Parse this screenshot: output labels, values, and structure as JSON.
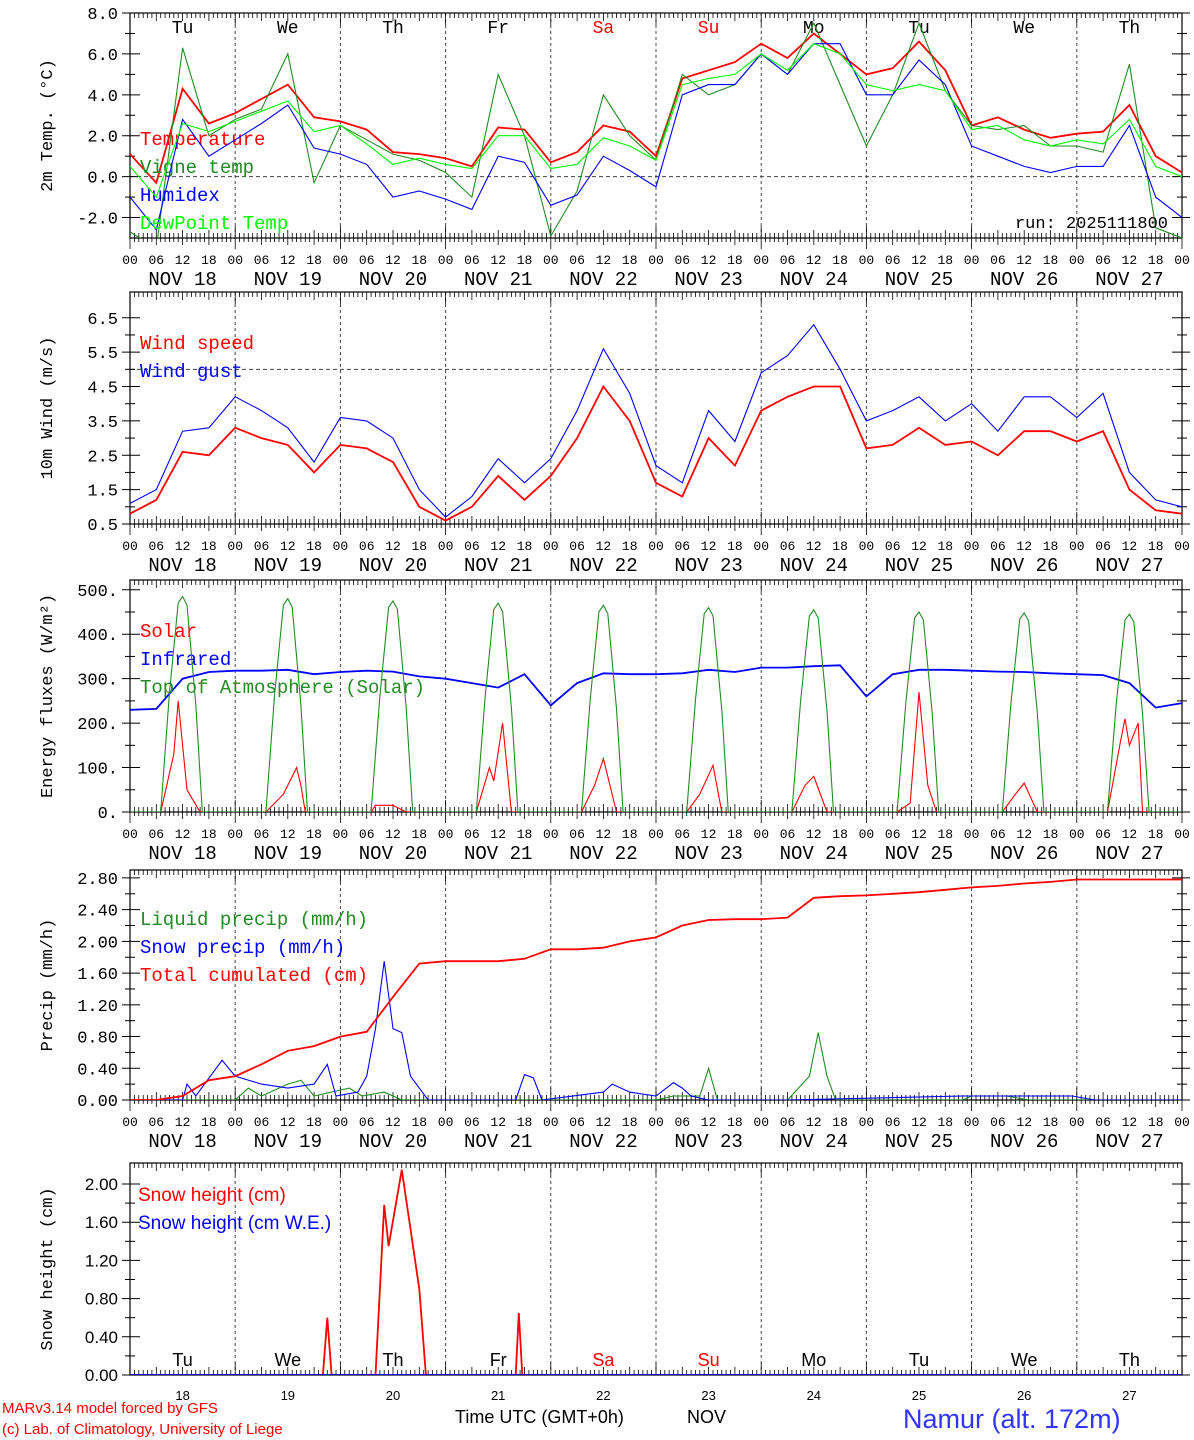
{
  "x_axis": {
    "start": "NOV 18 00 UTC",
    "hour_labels": [
      "00",
      "06",
      "12",
      "18"
    ],
    "date_labels": [
      "NOV 18",
      "NOV 19",
      "NOV 20",
      "NOV 21",
      "NOV 22",
      "NOV 23",
      "NOV 24",
      "NOV 25",
      "NOV 26",
      "NOV 27"
    ],
    "final_hour_label": "00",
    "day_names": [
      "Tu",
      "We",
      "Th",
      "Fr",
      "Sa",
      "Su",
      "Mo",
      "Tu",
      "We",
      "Th"
    ],
    "weekend_days": [
      "Sa",
      "Su"
    ],
    "day_numbers": [
      "18",
      "19",
      "20",
      "21",
      "22",
      "23",
      "24",
      "25",
      "26",
      "27"
    ],
    "time_label": "Time UTC (GMT+0h)",
    "month_label": "NOV"
  },
  "footer": {
    "model_line": "MARv3.14 model forced by GFS",
    "credit_line": "(c) Lab. of Climatology, University of Liege",
    "station": "Namur (alt. 172m)"
  },
  "colors": {
    "red": "#ff0000",
    "blue": "#0000ff",
    "dark_green": "#228b22",
    "light_green": "#00ff00",
    "weekend": "#ff0000",
    "station": "#3333ff"
  },
  "chart_data": [
    {
      "type": "line",
      "ylabel": "2m Temp. (°C)",
      "ylim": [
        -3,
        8
      ],
      "yticks": [
        "-2.0",
        "0.0",
        "2.0",
        "4.0",
        "6.0",
        "8.0"
      ],
      "ytick_values": [
        -2,
        0,
        2,
        4,
        6,
        8
      ],
      "ref_line": 0,
      "annotation": "run: 2025111800",
      "x_step_hours": 6,
      "series": [
        {
          "name": "Temperature",
          "color": "#ff0000",
          "values": [
            1.1,
            -0.3,
            4.3,
            2.6,
            3.1,
            3.8,
            4.5,
            2.9,
            2.7,
            2.3,
            1.2,
            1.1,
            0.9,
            0.5,
            2.4,
            2.3,
            0.7,
            1.2,
            2.5,
            2.2,
            1.0,
            4.8,
            5.2,
            5.6,
            6.5,
            5.8,
            7.0,
            6.0,
            5.0,
            5.3,
            6.6,
            5.2,
            2.5,
            2.9,
            2.3,
            1.9,
            2.1,
            2.2,
            3.5,
            1.0,
            0.2
          ]
        },
        {
          "name": "Vigne temp",
          "color": "#228b22",
          "values": [
            -2.7,
            -3.5,
            6.3,
            2.0,
            2.8,
            3.3,
            6.0,
            -0.3,
            2.5,
            1.8,
            1.1,
            0.8,
            0.2,
            -1.0,
            5.0,
            2.0,
            -2.9,
            -0.7,
            4.0,
            2.0,
            0.8,
            5.0,
            4.0,
            4.5,
            6.0,
            5.0,
            7.5,
            4.5,
            1.5,
            4.0,
            7.5,
            4.2,
            2.5,
            2.3,
            2.5,
            1.5,
            1.5,
            1.2,
            5.5,
            -2.5,
            -3.0
          ]
        },
        {
          "name": "Humidex",
          "color": "#0000ff",
          "values": [
            -1.0,
            -2.6,
            2.8,
            1.0,
            1.8,
            2.6,
            3.5,
            1.4,
            1.1,
            0.6,
            -1.0,
            -0.7,
            -1.1,
            -1.6,
            1.0,
            0.7,
            -1.4,
            -0.9,
            1.0,
            0.3,
            -0.5,
            4.0,
            4.5,
            4.5,
            6.0,
            5.0,
            6.5,
            6.5,
            4.0,
            4.0,
            5.7,
            4.5,
            1.5,
            1.0,
            0.5,
            0.2,
            0.5,
            0.5,
            2.5,
            -1.0,
            -2.0
          ]
        },
        {
          "name": "DewPoint Temp",
          "color": "#00ff00",
          "values": [
            0.5,
            -1.0,
            2.6,
            2.2,
            2.7,
            3.2,
            3.7,
            2.2,
            2.5,
            1.6,
            0.6,
            0.9,
            0.6,
            0.4,
            2.0,
            2.0,
            0.4,
            0.6,
            1.9,
            1.5,
            0.8,
            4.5,
            4.8,
            5.0,
            6.0,
            5.2,
            6.5,
            6.0,
            4.5,
            4.2,
            4.5,
            4.2,
            2.3,
            2.5,
            1.8,
            1.5,
            1.8,
            1.6,
            2.8,
            0.5,
            0.0
          ]
        }
      ]
    },
    {
      "type": "line",
      "ylabel": "10m Wind (m/s)",
      "ylim": [
        0.5,
        7.25
      ],
      "yticks": [
        "0.5",
        "1.5",
        "2.5",
        "3.5",
        "4.5",
        "5.5",
        "6.5"
      ],
      "ytick_values": [
        0.5,
        1.5,
        2.5,
        3.5,
        4.5,
        5.5,
        6.5
      ],
      "ref_line": 5.0,
      "x_step_hours": 6,
      "series": [
        {
          "name": "Wind speed",
          "color": "#ff0000",
          "values": [
            0.8,
            1.2,
            2.6,
            2.5,
            3.3,
            3.0,
            2.8,
            2.0,
            2.8,
            2.7,
            2.3,
            1.0,
            0.6,
            1.0,
            1.9,
            1.2,
            1.9,
            3.0,
            4.5,
            3.5,
            1.7,
            1.3,
            3.0,
            2.2,
            3.8,
            4.2,
            4.5,
            4.5,
            2.7,
            2.8,
            3.3,
            2.8,
            2.9,
            2.5,
            3.2,
            3.2,
            2.9,
            3.2,
            1.5,
            0.9,
            0.8
          ]
        },
        {
          "name": "Wind gust",
          "color": "#0000ff",
          "values": [
            1.1,
            1.5,
            3.2,
            3.3,
            4.2,
            3.8,
            3.3,
            2.3,
            3.6,
            3.5,
            3.0,
            1.5,
            0.7,
            1.3,
            2.4,
            1.7,
            2.4,
            3.8,
            5.6,
            4.3,
            2.2,
            1.7,
            3.8,
            2.9,
            4.9,
            5.4,
            6.3,
            5.0,
            3.5,
            3.8,
            4.2,
            3.5,
            4.0,
            3.2,
            4.2,
            4.2,
            3.6,
            4.3,
            2.0,
            1.2,
            1.0
          ]
        }
      ]
    },
    {
      "type": "line",
      "ylabel": "Energy fluxes (W/m²)",
      "ylim": [
        0,
        522
      ],
      "yticks": [
        "0.",
        "100.",
        "200.",
        "300.",
        "400.",
        "500."
      ],
      "ytick_values": [
        0,
        100,
        200,
        300,
        400,
        500
      ],
      "series": [
        {
          "name": "Solar",
          "color": "#ff0000",
          "points": [
            [
              0,
              0
            ],
            [
              7,
              0
            ],
            [
              10,
              130
            ],
            [
              11,
              250
            ],
            [
              13,
              50
            ],
            [
              16,
              0
            ],
            [
              31,
              0
            ],
            [
              35,
              40
            ],
            [
              38,
              100
            ],
            [
              39,
              60
            ],
            [
              40,
              0
            ],
            [
              55,
              0
            ],
            [
              56,
              15
            ],
            [
              60,
              15
            ],
            [
              63,
              0
            ],
            [
              79,
              0
            ],
            [
              82,
              100
            ],
            [
              83,
              70
            ],
            [
              85,
              200
            ],
            [
              87,
              0
            ],
            [
              103,
              0
            ],
            [
              106,
              60
            ],
            [
              108,
              120
            ],
            [
              111,
              0
            ],
            [
              127,
              0
            ],
            [
              130,
              40
            ],
            [
              133,
              105
            ],
            [
              135,
              0
            ],
            [
              151,
              0
            ],
            [
              154,
              60
            ],
            [
              156,
              80
            ],
            [
              159,
              0
            ],
            [
              175,
              0
            ],
            [
              178,
              20
            ],
            [
              180,
              270
            ],
            [
              182,
              60
            ],
            [
              184,
              0
            ],
            [
              199,
              0
            ],
            [
              202,
              40
            ],
            [
              204,
              65
            ],
            [
              207,
              0
            ],
            [
              223,
              0
            ],
            [
              226,
              160
            ],
            [
              227,
              210
            ],
            [
              228,
              150
            ],
            [
              230,
              200
            ],
            [
              231,
              0
            ],
            [
              240,
              0
            ]
          ]
        },
        {
          "name": "Infrared",
          "color": "#0000ff",
          "x_step_hours": 6,
          "values": [
            230,
            232,
            300,
            315,
            318,
            318,
            320,
            310,
            315,
            318,
            316,
            305,
            300,
            290,
            280,
            310,
            240,
            290,
            312,
            310,
            310,
            312,
            320,
            315,
            325,
            325,
            328,
            330,
            260,
            310,
            320,
            320,
            318,
            316,
            315,
            312,
            310,
            308,
            290,
            235,
            245
          ]
        },
        {
          "name": "Top of Atmosphere (Solar)",
          "color": "#228b22",
          "daily_peaks": [
            485,
            480,
            475,
            470,
            465,
            460,
            455,
            450,
            448,
            445
          ]
        }
      ]
    },
    {
      "type": "line",
      "ylabel": "Precip (mm/h)",
      "ylim": [
        0,
        2.9
      ],
      "yticks": [
        "0.00",
        "0.40",
        "0.80",
        "1.20",
        "1.60",
        "2.00",
        "2.40",
        "2.80"
      ],
      "ytick_values": [
        0,
        0.4,
        0.8,
        1.2,
        1.6,
        2.0,
        2.4,
        2.8
      ],
      "series": [
        {
          "name": "Liquid precip (mm/h)",
          "color": "#228b22",
          "points": [
            [
              0,
              0
            ],
            [
              24,
              0
            ],
            [
              27,
              0.15
            ],
            [
              30,
              0.05
            ],
            [
              36,
              0.2
            ],
            [
              39,
              0.25
            ],
            [
              42,
              0.05
            ],
            [
              50,
              0.15
            ],
            [
              53,
              0.05
            ],
            [
              58,
              0.1
            ],
            [
              62,
              0
            ],
            [
              120,
              0
            ],
            [
              124,
              0.05
            ],
            [
              130,
              0.05
            ],
            [
              132,
              0.4
            ],
            [
              134,
              0
            ],
            [
              150,
              0
            ],
            [
              155,
              0.3
            ],
            [
              157,
              0.85
            ],
            [
              159,
              0.3
            ],
            [
              161,
              0
            ],
            [
              190,
              0
            ],
            [
              192,
              0.05
            ],
            [
              200,
              0.05
            ],
            [
              205,
              0
            ],
            [
              240,
              0
            ]
          ]
        },
        {
          "name": "Snow precip (mm/h)",
          "color": "#0000ff",
          "points": [
            [
              0,
              0
            ],
            [
              12,
              0
            ],
            [
              13,
              0.2
            ],
            [
              15,
              0.05
            ],
            [
              21,
              0.5
            ],
            [
              24,
              0.3
            ],
            [
              30,
              0.2
            ],
            [
              36,
              0.15
            ],
            [
              42,
              0.2
            ],
            [
              45,
              0.45
            ],
            [
              47,
              0.05
            ],
            [
              52,
              0.1
            ],
            [
              54,
              0.3
            ],
            [
              56,
              0.9
            ],
            [
              58,
              1.75
            ],
            [
              60,
              0.9
            ],
            [
              62,
              0.85
            ],
            [
              64,
              0.3
            ],
            [
              66,
              0.15
            ],
            [
              68,
              0
            ],
            [
              88,
              0
            ],
            [
              90,
              0.32
            ],
            [
              92,
              0.28
            ],
            [
              94,
              0
            ],
            [
              108,
              0.1
            ],
            [
              110,
              0.2
            ],
            [
              114,
              0.1
            ],
            [
              120,
              0.05
            ],
            [
              124,
              0.22
            ],
            [
              126,
              0.15
            ],
            [
              128,
              0.05
            ],
            [
              132,
              0
            ],
            [
              150,
              0
            ],
            [
              190,
              0.05
            ],
            [
              200,
              0.05
            ],
            [
              215,
              0.05
            ],
            [
              220,
              0
            ],
            [
              240,
              0
            ]
          ]
        },
        {
          "name": "Total cumulated (cm)",
          "color": "#ff0000",
          "x_step_hours": 6,
          "values": [
            0,
            0,
            0.05,
            0.25,
            0.3,
            0.45,
            0.62,
            0.68,
            0.8,
            0.86,
            1.3,
            1.72,
            1.75,
            1.75,
            1.75,
            1.78,
            1.9,
            1.9,
            1.92,
            2.0,
            2.05,
            2.2,
            2.27,
            2.28,
            2.28,
            2.3,
            2.55,
            2.57,
            2.58,
            2.6,
            2.62,
            2.65,
            2.68,
            2.7,
            2.73,
            2.75,
            2.78,
            2.78,
            2.78,
            2.78,
            2.78
          ]
        }
      ]
    },
    {
      "type": "line",
      "ylabel": "Snow height (cm)",
      "ylim": [
        0,
        2.22
      ],
      "yticks": [
        "0.00",
        "0.40",
        "0.80",
        "1.20",
        "1.60",
        "2.00"
      ],
      "ytick_values": [
        0,
        0.4,
        0.8,
        1.2,
        1.6,
        2.0
      ],
      "series": [
        {
          "name": "Snow height (cm)",
          "color": "#ff0000",
          "points": [
            [
              0,
              0
            ],
            [
              44,
              0
            ],
            [
              45,
              0.6
            ],
            [
              46,
              0
            ],
            [
              56,
              0
            ],
            [
              58,
              1.78
            ],
            [
              59,
              1.35
            ],
            [
              62,
              2.15
            ],
            [
              66,
              0.9
            ],
            [
              67.5,
              0
            ],
            [
              88,
              0
            ],
            [
              88.7,
              0.65
            ],
            [
              89.5,
              0
            ],
            [
              240,
              0
            ]
          ]
        },
        {
          "name": "Snow height (cm W.E.)",
          "color": "#0000ff",
          "points": [
            [
              0,
              0
            ],
            [
              240,
              0
            ]
          ]
        }
      ]
    }
  ]
}
